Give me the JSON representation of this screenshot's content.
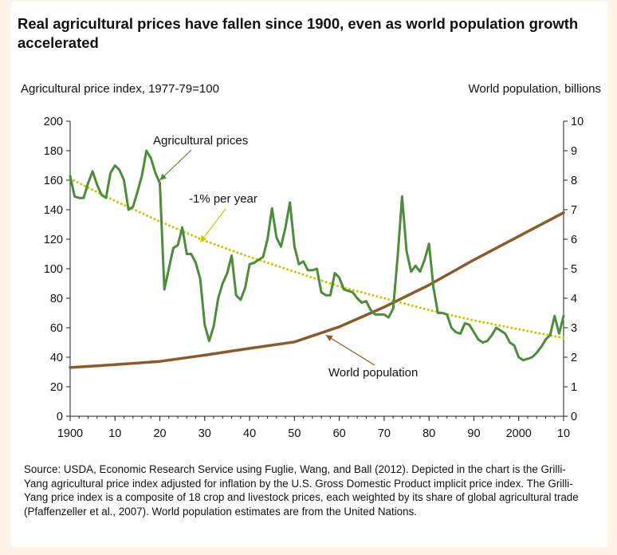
{
  "chart_data": {
    "type": "line",
    "title": "Real agricultural prices have fallen since 1900, even as world population growth accelerated",
    "ylabel": "Agricultural price index, 1977-79=100",
    "y2label": "World population, billions",
    "xlim": [
      1900,
      2010
    ],
    "ylim": [
      0,
      200
    ],
    "y2lim": [
      0,
      10
    ],
    "xticks": [
      1900,
      1910,
      1920,
      1930,
      1940,
      1950,
      1960,
      1970,
      1980,
      1990,
      2000,
      2010
    ],
    "xtick_labels": [
      "1900",
      "10",
      "20",
      "30",
      "40",
      "50",
      "60",
      "70",
      "80",
      "90",
      "2000",
      "10"
    ],
    "yticks": [
      0,
      20,
      40,
      60,
      80,
      100,
      120,
      140,
      160,
      180,
      200
    ],
    "y2ticks": [
      0,
      1,
      2,
      3,
      4,
      5,
      6,
      7,
      8,
      9,
      10
    ],
    "grid": false,
    "series": [
      {
        "name": "Agricultural prices",
        "axis": "left",
        "color": "#4c8c3a",
        "style": "solid",
        "x": [
          1900,
          1901,
          1902,
          1903,
          1904,
          1905,
          1906,
          1907,
          1908,
          1909,
          1910,
          1911,
          1912,
          1913,
          1914,
          1915,
          1916,
          1917,
          1918,
          1919,
          1920,
          1921,
          1922,
          1923,
          1924,
          1925,
          1926,
          1927,
          1928,
          1929,
          1930,
          1931,
          1932,
          1933,
          1934,
          1935,
          1936,
          1937,
          1938,
          1939,
          1940,
          1941,
          1942,
          1943,
          1944,
          1945,
          1946,
          1947,
          1948,
          1949,
          1950,
          1951,
          1952,
          1953,
          1954,
          1955,
          1956,
          1957,
          1958,
          1959,
          1960,
          1961,
          1962,
          1963,
          1964,
          1965,
          1966,
          1967,
          1968,
          1969,
          1970,
          1971,
          1972,
          1973,
          1974,
          1975,
          1976,
          1977,
          1978,
          1979,
          1980,
          1981,
          1982,
          1983,
          1984,
          1985,
          1986,
          1987,
          1988,
          1989,
          1990,
          1991,
          1992,
          1993,
          1994,
          1995,
          1996,
          1997,
          1998,
          1999,
          2000,
          2001,
          2002,
          2003,
          2004,
          2005,
          2006,
          2007,
          2008,
          2009,
          2010
        ],
        "values": [
          163,
          149,
          148,
          148,
          158,
          166,
          157,
          150,
          148,
          165,
          170,
          167,
          160,
          140,
          142,
          152,
          163,
          180,
          175,
          165,
          158,
          86,
          100,
          114,
          116,
          128,
          110,
          110,
          104,
          93,
          62,
          51,
          61,
          80,
          90,
          97,
          109,
          82,
          79,
          87,
          103,
          104,
          106,
          108,
          120,
          141,
          121,
          115,
          128,
          145,
          115,
          103,
          105,
          99,
          99,
          100,
          84,
          82,
          82,
          97,
          94,
          86,
          85,
          84,
          80,
          77,
          78,
          72,
          69,
          69,
          69,
          67,
          73,
          108,
          149,
          112,
          98,
          102,
          98,
          106,
          117,
          87,
          70,
          70,
          69,
          60,
          57,
          56,
          63,
          62,
          57,
          52,
          50,
          51,
          55,
          60,
          58,
          56,
          50,
          48,
          40,
          38,
          39,
          40,
          43,
          47,
          52,
          55,
          68,
          56,
          68
        ]
      },
      {
        "name": "World population",
        "axis": "right",
        "color": "#8b5a2b",
        "style": "solid",
        "x": [
          1900,
          1910,
          1920,
          1930,
          1940,
          1950,
          1960,
          1970,
          1980,
          1990,
          2000,
          2010
        ],
        "values": [
          1.65,
          1.75,
          1.86,
          2.07,
          2.3,
          2.52,
          3.03,
          3.7,
          4.45,
          5.3,
          6.1,
          6.9
        ]
      },
      {
        "name": "-1% per year",
        "axis": "left",
        "color": "#c8c800",
        "style": "dotted",
        "x": [
          1900,
          1910,
          1920,
          1930,
          1940,
          1950,
          1960,
          1970,
          1980,
          1990,
          2000,
          2010
        ],
        "values": [
          161,
          146,
          132,
          119,
          108,
          98,
          88,
          80,
          72,
          65,
          59,
          53
        ]
      }
    ],
    "annotations": [
      {
        "text": "Agricultural prices",
        "target_x": 1920,
        "target_y": 160
      },
      {
        "text": "-1% per year",
        "target_x": 1929,
        "target_y": 118
      },
      {
        "text": "World population",
        "target_x": 1957,
        "target_y": 55
      }
    ],
    "source": "Source: USDA, Economic Research Service using Fuglie, Wang, and Ball (2012). Depicted in the chart is the Grilli-Yang agricultural price index adjusted for inflation by the U.S. Gross Domestic Product implicit price index. The Grilli-Yang price index is a composite of 18 crop and livestock prices, each weighted by its share of global agricultural trade (Pfaffenzeller et al., 2007). World population estimates are from the United Nations."
  }
}
